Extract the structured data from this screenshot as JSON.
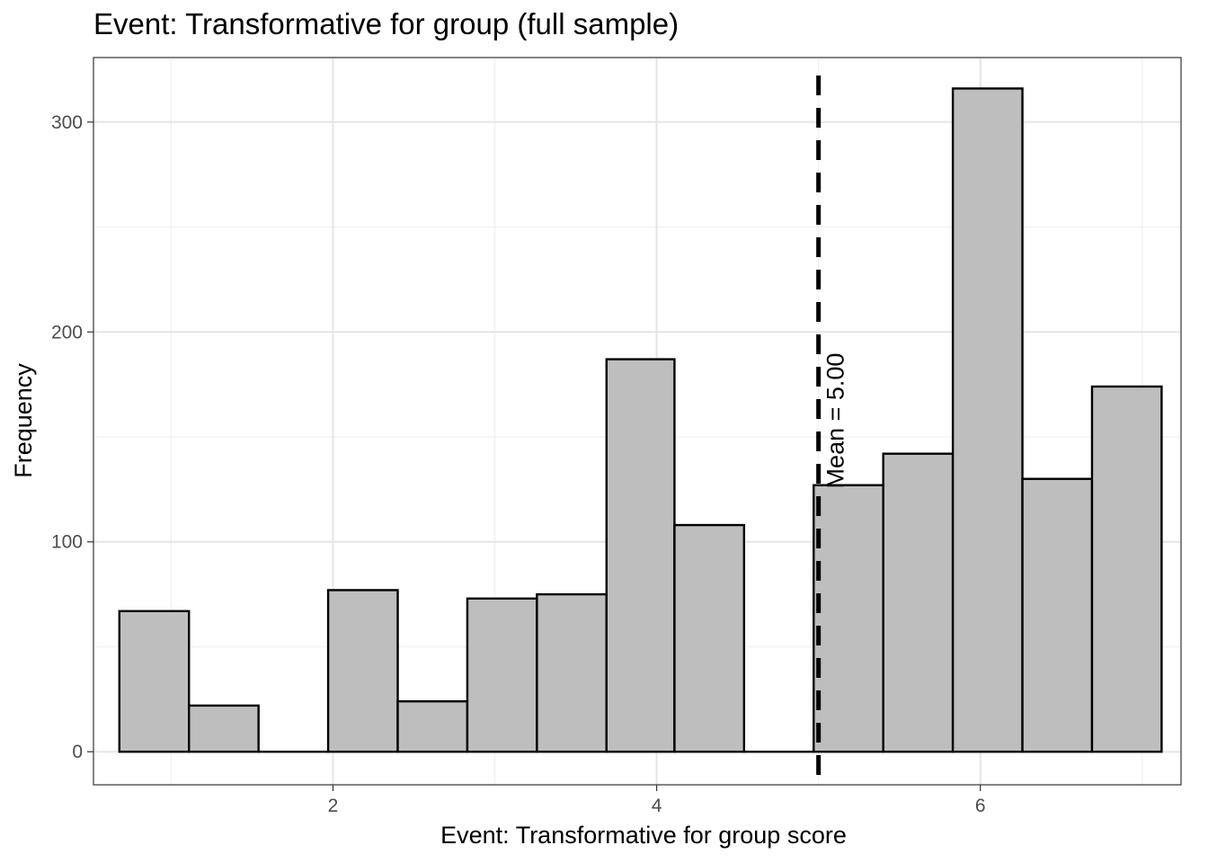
{
  "chart_data": {
    "type": "bar",
    "title": "Event: Transformative for group (full sample)",
    "xlabel": "Event: Transformative for group score",
    "ylabel": "Frequency",
    "xlim": [
      0.52,
      7.24
    ],
    "ylim": [
      -15.75,
      330.75
    ],
    "x_ticks": [
      2,
      4,
      6
    ],
    "y_ticks": [
      0,
      100,
      200,
      300
    ],
    "grid": true,
    "bins": [
      {
        "x0": 0.68,
        "x1": 1.11,
        "count": 67
      },
      {
        "x0": 1.11,
        "x1": 1.54,
        "count": 22
      },
      {
        "x0": 1.54,
        "x1": 1.97,
        "count": 0
      },
      {
        "x0": 1.97,
        "x1": 2.4,
        "count": 77
      },
      {
        "x0": 2.4,
        "x1": 2.83,
        "count": 24
      },
      {
        "x0": 2.83,
        "x1": 3.26,
        "count": 73
      },
      {
        "x0": 3.26,
        "x1": 3.69,
        "count": 75
      },
      {
        "x0": 3.69,
        "x1": 4.11,
        "count": 187
      },
      {
        "x0": 4.11,
        "x1": 4.54,
        "count": 108
      },
      {
        "x0": 4.54,
        "x1": 4.97,
        "count": 0
      },
      {
        "x0": 4.97,
        "x1": 5.4,
        "count": 127
      },
      {
        "x0": 5.4,
        "x1": 5.83,
        "count": 142
      },
      {
        "x0": 5.83,
        "x1": 6.26,
        "count": 316
      },
      {
        "x0": 6.26,
        "x1": 6.69,
        "count": 130
      },
      {
        "x0": 6.69,
        "x1": 7.12,
        "count": 174
      }
    ],
    "bar_fill": "#bebebe",
    "bar_stroke": "#000000",
    "mean_line": {
      "x": 5.0,
      "label": "Mean = 5.00",
      "style": "dashed",
      "color": "#000000"
    }
  }
}
